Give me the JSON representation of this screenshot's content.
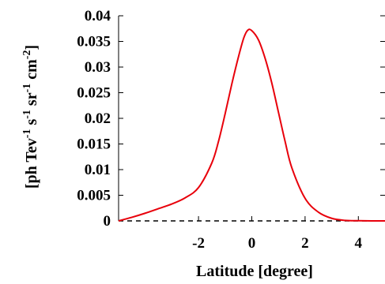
{
  "chart_data": {
    "type": "line",
    "xlabel": "Latitude [degree]",
    "ylabel_parts": [
      {
        "text": "[ph Tev",
        "sup": false
      },
      {
        "text": "-1",
        "sup": true
      },
      {
        "text": " s",
        "sup": false
      },
      {
        "text": "-1",
        "sup": true
      },
      {
        "text": " sr",
        "sup": false
      },
      {
        "text": "-1",
        "sup": true
      },
      {
        "text": " cm",
        "sup": false
      },
      {
        "text": "-2",
        "sup": true
      },
      {
        "text": "]",
        "sup": false
      }
    ],
    "xlim": [
      -5,
      5
    ],
    "ylim": [
      0,
      0.04
    ],
    "x_ticks": [
      {
        "value": -2,
        "label": "-2"
      },
      {
        "value": 0,
        "label": "0"
      },
      {
        "value": 2,
        "label": "2"
      },
      {
        "value": 4,
        "label": "4"
      }
    ],
    "y_ticks": [
      {
        "value": 0,
        "label": "0"
      },
      {
        "value": 0.005,
        "label": "0.005"
      },
      {
        "value": 0.01,
        "label": "0.01"
      },
      {
        "value": 0.015,
        "label": "0.015"
      },
      {
        "value": 0.02,
        "label": "0.02"
      },
      {
        "value": 0.025,
        "label": "0.025"
      },
      {
        "value": 0.03,
        "label": "0.03"
      },
      {
        "value": 0.035,
        "label": "0.035"
      },
      {
        "value": 0.04,
        "label": "0.04"
      }
    ],
    "grid": false,
    "series": [
      {
        "color": "#e8000b",
        "baseline_color": "#000000",
        "x": [
          -5,
          -4.5,
          -4,
          -3.5,
          -3,
          -2.5,
          -2,
          -1.5,
          -1.25,
          -1,
          -0.75,
          -0.5,
          -0.3,
          -0.15,
          0,
          0.25,
          0.5,
          0.75,
          1,
          1.25,
          1.5,
          2,
          2.5,
          3,
          3.5,
          4,
          4.5,
          5
        ],
        "y": [
          0,
          0.0007,
          0.0015,
          0.0024,
          0.0033,
          0.0045,
          0.0065,
          0.0113,
          0.0155,
          0.0209,
          0.0267,
          0.032,
          0.0357,
          0.0372,
          0.0371,
          0.0353,
          0.0317,
          0.0269,
          0.0212,
          0.0155,
          0.0104,
          0.0044,
          0.0017,
          0.0005,
          0.0001,
          3e-05,
          1e-05,
          0
        ]
      }
    ]
  }
}
